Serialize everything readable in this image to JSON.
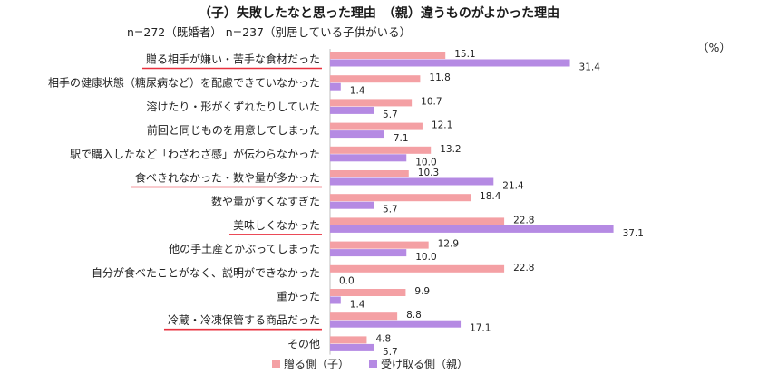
{
  "title": "（子）失敗したなと思った理由　（親）違うものがよかった理由",
  "subtitle": "n=272（既婚者） n=237（別居している子供がいる）",
  "unit": "（%）",
  "colors": {
    "giver": "#f4a0a4",
    "receiver": "#b58ae3",
    "underline": "#e8313f",
    "axis": "#bfbfbf"
  },
  "chart_data": {
    "type": "bar",
    "orientation": "horizontal",
    "xlim": [
      0,
      40
    ],
    "categories": [
      "贈る相手が嫌い・苦手な食材だった",
      "相手の健康状態（糖尿病など）を配慮できていなかった",
      "溶けたり・形がくずれたりしていた",
      "前回と同じものを用意してしまった",
      "駅で購入したなど「わざわざ感」が伝わらなかった",
      "食べきれなかった・数や量が多かった",
      "数や量がすくなすぎた",
      "美味しくなかった",
      "他の手土産とかぶってしまった",
      "自分が食べたことがなく、説明ができなかった",
      "重かった",
      "冷蔵・冷凍保管する商品だった",
      "その他"
    ],
    "underlined": [
      true,
      false,
      false,
      false,
      false,
      true,
      false,
      true,
      false,
      false,
      false,
      true,
      false
    ],
    "series": [
      {
        "name": "贈る側（子）",
        "values": [
          15.1,
          11.8,
          10.7,
          12.1,
          13.2,
          10.3,
          18.4,
          22.8,
          12.9,
          22.8,
          9.9,
          8.8,
          4.8
        ]
      },
      {
        "name": "受け取る側（親）",
        "values": [
          31.4,
          1.4,
          5.7,
          7.1,
          10.0,
          21.4,
          5.7,
          37.1,
          10.0,
          0.0,
          1.4,
          17.1,
          5.7
        ]
      }
    ]
  }
}
